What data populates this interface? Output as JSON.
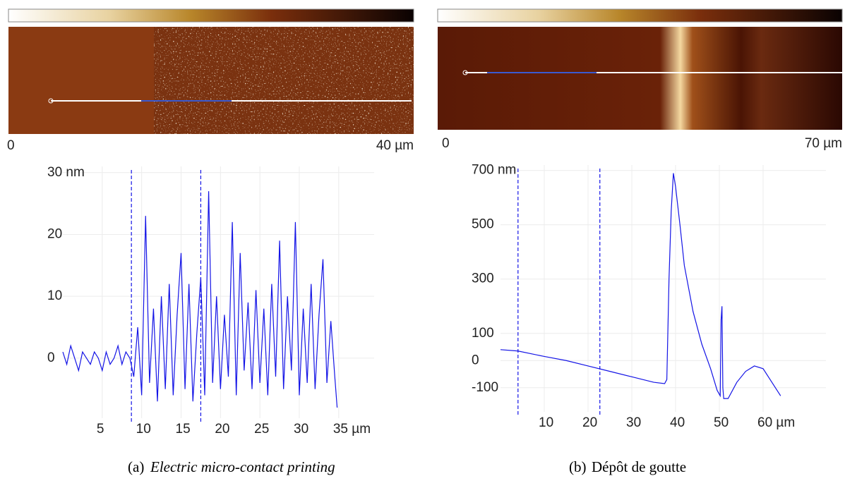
{
  "chart_data": [
    {
      "type": "line",
      "color": "#1414e6",
      "grid": true,
      "x": [
        0,
        0.5,
        1,
        1.5,
        2,
        2.5,
        3,
        3.5,
        4,
        4.5,
        5,
        5.5,
        6,
        6.5,
        7,
        7.5,
        8,
        8.5,
        9,
        9.5,
        10,
        10.5,
        11,
        11.5,
        12,
        12.5,
        13,
        13.5,
        14,
        14.5,
        15,
        15.5,
        16,
        16.5,
        17,
        17.5,
        18,
        18.5,
        19,
        19.5,
        20,
        20.5,
        21,
        21.5,
        22,
        22.5,
        23,
        23.5,
        24,
        24.5,
        25,
        25.5,
        26,
        26.5,
        27,
        27.5,
        28,
        28.5,
        29,
        29.5,
        30,
        30.5,
        31,
        31.5,
        32,
        32.5,
        33,
        33.5,
        34,
        34.5,
        34.8
      ],
      "values": [
        1,
        -1,
        2,
        0,
        -2,
        1,
        0,
        -1,
        1,
        0,
        -2,
        1,
        -1,
        0,
        2,
        -1,
        1,
        0,
        -3,
        5,
        -6,
        23,
        -4,
        8,
        -7,
        10,
        -5,
        12,
        -6,
        7,
        17,
        -5,
        12,
        -7,
        4,
        13,
        -6,
        27,
        -4,
        10,
        -5,
        7,
        -3,
        22,
        -6,
        17,
        -2,
        9,
        -5,
        11,
        -4,
        8,
        -6,
        12,
        -3,
        19,
        -5,
        10,
        -2,
        22,
        -6,
        8,
        -4,
        12,
        -5,
        7,
        16,
        -4,
        6,
        -3,
        -8
      ],
      "cursors": [
        8.7,
        17.5
      ],
      "xlim": [
        0,
        36
      ],
      "ylim": [
        -8,
        31
      ],
      "xticks": [
        5,
        10,
        15,
        20,
        25,
        30,
        {
          "value": 35,
          "label": "35 µm"
        }
      ],
      "yticks": [
        {
          "value": 30,
          "label": "30 nm"
        },
        20,
        10,
        0
      ]
    },
    {
      "type": "line",
      "color": "#1414e6",
      "grid": true,
      "x": [
        0,
        4,
        10,
        15,
        20,
        25,
        30,
        35,
        37.5,
        38,
        38.5,
        39,
        39.5,
        40,
        41,
        42,
        44,
        46,
        48,
        49.5,
        50.2,
        50.4,
        50.6,
        50.8,
        51,
        52,
        54,
        56,
        58,
        60,
        62,
        64
      ],
      "values": [
        40,
        35,
        15,
        0,
        -20,
        -40,
        -60,
        -80,
        -85,
        -70,
        300,
        550,
        690,
        640,
        500,
        350,
        180,
        60,
        -30,
        -110,
        -130,
        150,
        200,
        -100,
        -140,
        -140,
        -80,
        -40,
        -20,
        -30,
        -80,
        -130
      ],
      "cursors": [
        4,
        22.7
      ],
      "xlim": [
        0,
        70
      ],
      "ylim": [
        -150,
        720
      ],
      "xticks": [
        10,
        20,
        30,
        40,
        50,
        {
          "value": 60,
          "label": "60 µm"
        }
      ],
      "yticks": [
        {
          "value": 700,
          "label": "700 nm"
        },
        500,
        300,
        100,
        0,
        -100
      ]
    }
  ],
  "images": [
    {
      "start": "0",
      "end": "40 µm"
    },
    {
      "start": "0",
      "end": "70 µm"
    }
  ],
  "captions": [
    {
      "label": "(a)",
      "text": "Electric micro-contact printing"
    },
    {
      "label": "(b)",
      "text": "Dépôt de goutte"
    }
  ]
}
